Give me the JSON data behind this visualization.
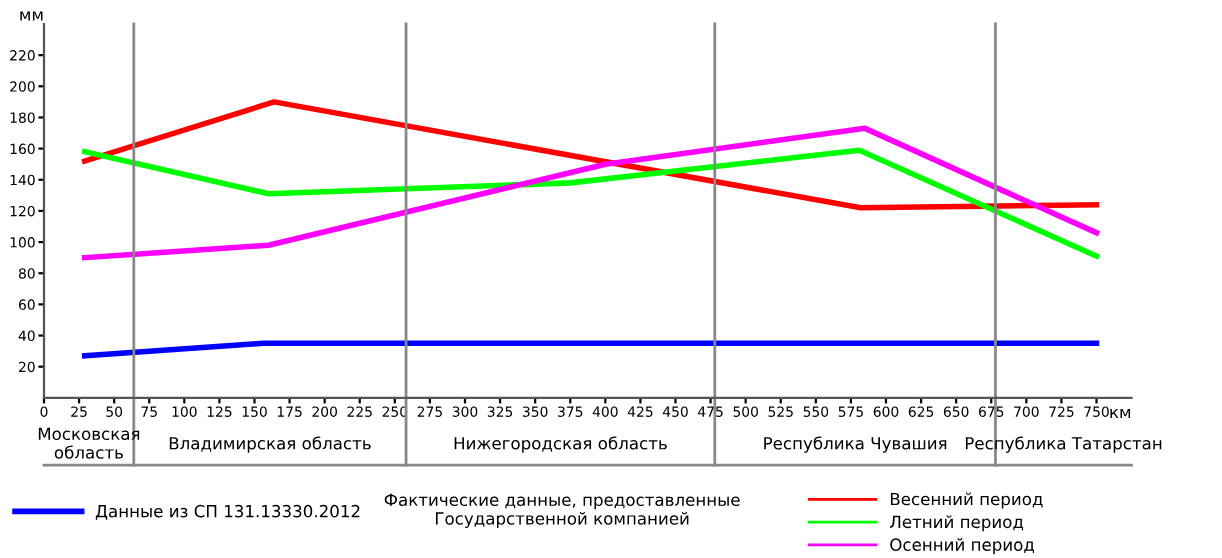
{
  "chart_data": {
    "type": "line",
    "xlabel": "км",
    "ylabel": "мм",
    "legend_title": "Фактические данные, предоставленные\nГосударственной компанией",
    "xlim": [
      0,
      775
    ],
    "xticks": [
      0,
      25,
      50,
      75,
      100,
      125,
      150,
      175,
      200,
      225,
      250,
      275,
      300,
      325,
      350,
      375,
      400,
      425,
      450,
      475,
      500,
      525,
      550,
      575,
      600,
      625,
      650,
      675,
      700,
      725,
      750
    ],
    "ylim": [
      0,
      240
    ],
    "yticks": [
      20,
      40,
      60,
      80,
      100,
      120,
      140,
      160,
      180,
      200,
      220
    ],
    "legend": "bottom",
    "marker": "none",
    "series": [
      {
        "name": "Данные из СП 131.13330.2012",
        "color": "#0000ff",
        "x": [
          29,
          156,
          750
        ],
        "values": [
          27,
          35,
          35
        ]
      },
      {
        "name": "Весенний период",
        "color": "#ff0000",
        "x": [
          29,
          164,
          582,
          750
        ],
        "values": [
          152,
          190,
          122,
          124
        ]
      },
      {
        "name": "Летний период",
        "color": "#00ff00",
        "x": [
          29,
          160,
          375,
          581,
          750
        ],
        "values": [
          158,
          131,
          138,
          159,
          91
        ]
      },
      {
        "name": "Осенний период",
        "color": "#ff00ff",
        "x": [
          29,
          160,
          400,
          585,
          750
        ],
        "values": [
          90,
          98,
          150,
          173,
          106
        ]
      }
    ],
    "ref_lines": [
      {
        "axis": "x",
        "value": 64,
        "color": "#888888"
      },
      {
        "axis": "x",
        "value": 258,
        "color": "#888888"
      },
      {
        "axis": "x",
        "value": 478,
        "color": "#888888"
      },
      {
        "axis": "x",
        "value": 678,
        "color": "#888888"
      }
    ],
    "annotations": [
      "Московская\nобласть",
      "Владимирская область",
      "Нижегородская область",
      "Республика Чувашия",
      "Республика Татарстан"
    ]
  }
}
